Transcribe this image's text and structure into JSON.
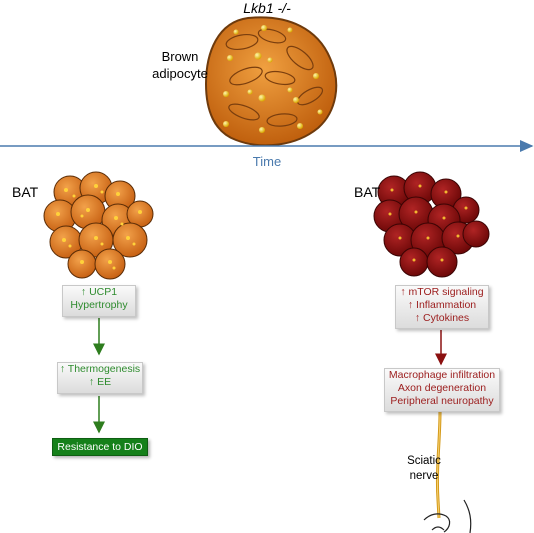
{
  "title": "Lkb1 -/-",
  "cell_label": [
    "Brown",
    "adipocyte"
  ],
  "time_label": "Time",
  "left": {
    "tissue_label": "BAT",
    "box1": [
      "UCP1",
      "Hypertrophy"
    ],
    "box2": [
      "Thermogenesis",
      "EE"
    ],
    "box3": "Resistance to DIO",
    "colors": {
      "tissue": "#e07a1a",
      "text": "#2e8b2e",
      "box": "#15801a"
    }
  },
  "right": {
    "tissue_label": "BAT",
    "box1": [
      "mTOR signaling",
      "Inflammation",
      "Cytokines"
    ],
    "box2": [
      "Macrophage infiltration",
      "Axon degeneration",
      "Peripheral neuropathy"
    ],
    "nerve_label": [
      "Sciatic",
      "nerve"
    ],
    "colors": {
      "tissue": "#8b1010",
      "text": "#9b1c1c"
    }
  },
  "accent_colors": {
    "timeline": "#4a7aad",
    "cell": "#d9791e",
    "droplet": "#f2c318"
  }
}
